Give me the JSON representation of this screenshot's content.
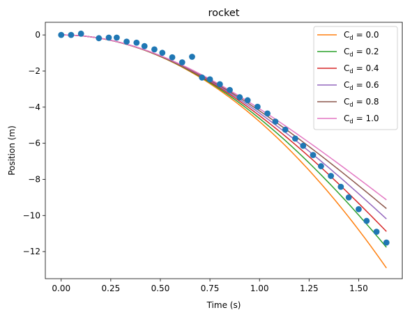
{
  "chart_data": {
    "type": "line",
    "title": "rocket",
    "xlabel": "Time (s)",
    "ylabel": "Position (m)",
    "xlim": [
      -0.08,
      1.72
    ],
    "ylim": [
      -13.5,
      0.7
    ],
    "xticks": [
      0.0,
      0.25,
      0.5,
      0.75,
      1.0,
      1.25,
      1.5
    ],
    "xtick_labels": [
      "0.00",
      "0.25",
      "0.50",
      "0.75",
      "1.00",
      "1.25",
      "1.50"
    ],
    "yticks": [
      0,
      -2,
      -4,
      -6,
      -8,
      -10,
      -12
    ],
    "ytick_labels": [
      "0",
      "−2",
      "−4",
      "−6",
      "−8",
      "−10",
      "−12"
    ],
    "grid": false,
    "legend_position": "top-right",
    "legend_label_prefix": "C",
    "legend_label_sub": "d",
    "x_end": 1.64,
    "series": [
      {
        "name": "0.0",
        "color": "#ff7f0e",
        "g": 9.6,
        "cd": 0.0
      },
      {
        "name": "0.2",
        "color": "#2ca02c",
        "g": 9.6,
        "cd": 0.2
      },
      {
        "name": "0.4",
        "color": "#d62728",
        "g": 9.6,
        "cd": 0.4
      },
      {
        "name": "0.6",
        "color": "#9467bd",
        "g": 9.6,
        "cd": 0.6
      },
      {
        "name": "0.8",
        "color": "#8c564b",
        "g": 9.6,
        "cd": 0.8
      },
      {
        "name": "1.0",
        "color": "#e377c2",
        "g": 9.6,
        "cd": 1.0
      }
    ],
    "scatter": {
      "color": "#1f77b4",
      "x": [
        0.0,
        0.05,
        0.1,
        0.19,
        0.24,
        0.28,
        0.33,
        0.38,
        0.42,
        0.47,
        0.51,
        0.56,
        0.61,
        0.66,
        0.71,
        0.75,
        0.8,
        0.85,
        0.9,
        0.94,
        0.99,
        1.04,
        1.08,
        1.13,
        1.18,
        1.22,
        1.27,
        1.31,
        1.36,
        1.41,
        1.45,
        1.5,
        1.54,
        1.59,
        1.64
      ],
      "y": [
        0.0,
        0.0,
        0.07,
        -0.18,
        -0.15,
        -0.15,
        -0.37,
        -0.43,
        -0.62,
        -0.8,
        -0.99,
        -1.24,
        -1.52,
        -1.21,
        -2.36,
        -2.46,
        -2.73,
        -3.05,
        -3.45,
        -3.62,
        -3.98,
        -4.35,
        -4.8,
        -5.25,
        -5.74,
        -6.14,
        -6.65,
        -7.27,
        -7.81,
        -8.41,
        -9.0,
        -9.65,
        -10.3,
        -10.9,
        -11.5
      ]
    }
  }
}
